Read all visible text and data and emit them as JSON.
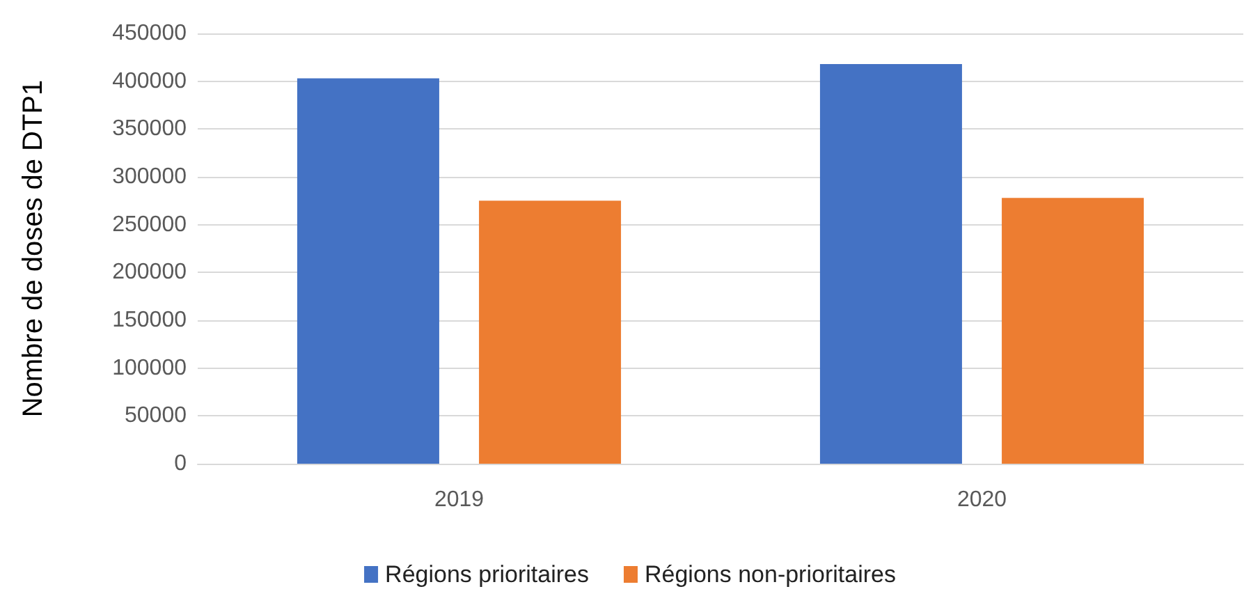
{
  "chart_data": {
    "type": "bar",
    "ylabel": "Nombre de doses de DTP1",
    "categories": [
      "2019",
      "2020"
    ],
    "series": [
      {
        "name": "Régions prioritaires",
        "color": "#4472c4",
        "values": [
          403000,
          418000
        ]
      },
      {
        "name": "Régions non-prioritaires",
        "color": "#ed7d31",
        "values": [
          275000,
          278000
        ]
      }
    ],
    "ylim": [
      0,
      450000
    ],
    "yticks": [
      0,
      50000,
      100000,
      150000,
      200000,
      250000,
      300000,
      350000,
      400000,
      450000
    ],
    "grid": "y",
    "legend": "bottom"
  }
}
